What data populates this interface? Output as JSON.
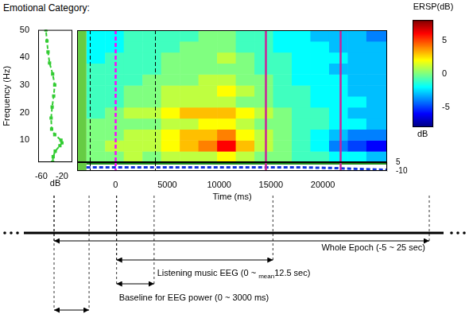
{
  "title": "Emotional Category:",
  "chart_data": [
    {
      "type": "line",
      "xlabel": "dB",
      "ylabel": "Frequency (Hz)",
      "x": [
        -38,
        -37,
        -33,
        -24,
        -20,
        -22,
        -34,
        -40,
        -41,
        -39,
        -36,
        -34,
        -38,
        -44,
        -47,
        -49,
        -51
      ],
      "y": [
        2,
        4,
        6,
        8,
        9,
        10,
        12,
        14,
        18,
        22,
        26,
        30,
        34,
        38,
        42,
        46,
        50
      ],
      "xlim": [
        -66,
        0
      ],
      "xticks": [
        -60,
        -20
      ],
      "ylim": [
        2,
        50
      ],
      "yticks": [
        10,
        20,
        30,
        40,
        50
      ],
      "color": "#33cc33",
      "line_style": "dashed",
      "marker": "square",
      "grid": false
    },
    {
      "type": "heatmap",
      "xlim": [
        -3700,
        26200
      ],
      "ylim": [
        2,
        50
      ],
      "tick_labels": false,
      "x_bins": [
        -2800,
        -1000,
        800,
        2600,
        4400,
        6200,
        8000,
        9800,
        11600,
        13400,
        15200,
        17000,
        18800,
        20600,
        22400,
        24200,
        26200
      ],
      "y_bins": [
        2,
        6,
        10,
        14,
        18,
        22,
        26,
        30,
        34,
        38,
        42,
        46,
        50
      ],
      "cells": [
        [
          0,
          0,
          1,
          0,
          1,
          1,
          1,
          2,
          1,
          0,
          0,
          -1,
          -1,
          -2,
          -2,
          -3
        ],
        [
          0,
          1,
          1,
          1,
          2,
          3,
          4,
          6,
          3,
          1,
          0,
          -1,
          -2,
          -4,
          -5,
          -6
        ],
        [
          0,
          0,
          1,
          1,
          2,
          3,
          3,
          4,
          2,
          1,
          0,
          -1,
          -2,
          -3,
          -4,
          -4
        ],
        [
          0,
          0,
          0,
          0,
          1,
          1,
          2,
          2,
          1,
          0,
          0,
          -1,
          -1,
          -2,
          -2,
          -3
        ],
        [
          -1,
          0,
          1,
          1,
          2,
          3,
          3,
          3,
          2,
          1,
          0,
          -1,
          -1,
          -2,
          -3,
          -3
        ],
        [
          -1,
          -1,
          0,
          0,
          1,
          1,
          1,
          1,
          0,
          0,
          -1,
          -1,
          -2,
          -2,
          -2,
          -3
        ],
        [
          -1,
          -1,
          0,
          0,
          1,
          1,
          1,
          2,
          1,
          0,
          -1,
          -1,
          -2,
          -2,
          -3,
          -3
        ],
        [
          -1,
          -1,
          -1,
          0,
          0,
          0,
          1,
          1,
          0,
          0,
          -1,
          -2,
          -2,
          -2,
          -3,
          -3
        ],
        [
          -1,
          -1,
          -1,
          -1,
          0,
          0,
          0,
          0,
          0,
          -1,
          -1,
          -2,
          -2,
          -3,
          -3,
          -3
        ],
        [
          -2,
          -1,
          -1,
          -1,
          0,
          0,
          0,
          1,
          0,
          -1,
          -1,
          -2,
          -2,
          -2,
          -3,
          -3
        ],
        [
          -2,
          -2,
          -1,
          -1,
          -1,
          0,
          0,
          0,
          -1,
          -1,
          -2,
          -2,
          -2,
          -3,
          -3,
          -3
        ],
        [
          -2,
          -2,
          -1,
          -1,
          -1,
          -1,
          0,
          0,
          -1,
          -1,
          -2,
          -2,
          -3,
          -3,
          -3,
          -4
        ]
      ],
      "colorbar": {
        "title": "ERSP(dB)",
        "unit": "dB",
        "range": [
          -8,
          8
        ],
        "ticks": [
          -5,
          0,
          5
        ]
      },
      "shaded": [
        {
          "start": -3700,
          "end": -2800,
          "color": "#66cc44"
        }
      ],
      "vlines": [
        {
          "x": -2500,
          "color": "#000000",
          "line_style": "dashed"
        },
        {
          "x": 0,
          "color": "#ff00ff",
          "line_style": "dashed"
        },
        {
          "x": 3800,
          "color": "#000000",
          "line_style": "dashed"
        },
        {
          "x": 14500,
          "color": "#cc2299",
          "line_style": "solid"
        },
        {
          "x": 21700,
          "color": "#cc2299",
          "line_style": "solid"
        }
      ]
    },
    {
      "type": "line",
      "xlabel": "Time (ms)",
      "x": [
        -2800,
        0,
        3000,
        6000,
        9000,
        12000,
        15000,
        18000,
        21000,
        24000,
        26200
      ],
      "series": [
        {
          "color": "#1f8f1f",
          "line_style": "solid",
          "values": [
            3,
            3,
            3,
            3,
            3,
            3,
            3,
            3,
            3,
            3,
            3
          ]
        },
        {
          "color": "#1133dd",
          "line_style": "dashed",
          "values": [
            -4,
            -4,
            -4,
            -4,
            -4,
            -4,
            -4,
            -4,
            -5,
            -7,
            -8
          ]
        }
      ],
      "xlim": [
        -3700,
        26200
      ],
      "xticks": [
        0,
        5000,
        10000,
        15000,
        20000
      ],
      "ylim": [
        -10,
        5
      ],
      "yticks": [
        -10,
        5
      ],
      "grid": false
    }
  ],
  "timeline": {
    "spans": [
      {
        "start": -5,
        "end": 25,
        "label": "Whole Epoch (-5 ~ 25 sec)"
      },
      {
        "start": 0,
        "end": 12.5,
        "label": {
          "text": "Listening music EEG (0 ~ ",
          "subscript": "mean",
          "after": "12.5 sec)"
        }
      },
      {
        "start": 0,
        "end": 3,
        "label": "Baseline for EEG power (0 ~ 3000 ms)"
      },
      {
        "start": -5,
        "end": -2.2
      }
    ]
  }
}
